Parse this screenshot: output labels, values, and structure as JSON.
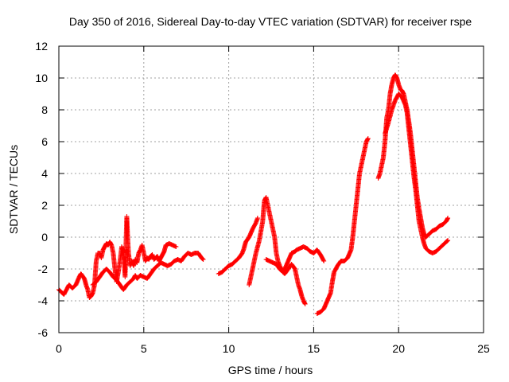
{
  "chart_data": {
    "type": "scatter",
    "title": "Day 350 of 2016, Sidereal Day-to-day VTEC variation (SDTVAR) for receiver rspe",
    "xlabel": "GPS time / hours",
    "ylabel": "SDTVAR / TECUs",
    "xlim": [
      0,
      25
    ],
    "ylim": [
      -6,
      12
    ],
    "xticks": [
      0,
      5,
      10,
      15,
      20,
      25
    ],
    "yticks": [
      -6,
      -4,
      -2,
      0,
      2,
      4,
      6,
      8,
      10,
      12
    ],
    "grid": true,
    "marker": "+",
    "series": [
      {
        "name": "SDTVAR",
        "color": "#ff0000",
        "segments": [
          [
            [
              0.0,
              -3.3
            ],
            [
              0.2,
              -3.5
            ],
            [
              0.3,
              -3.6
            ],
            [
              0.5,
              -3.2
            ],
            [
              0.6,
              -3.0
            ],
            [
              0.8,
              -3.2
            ],
            [
              1.0,
              -3.0
            ],
            [
              1.2,
              -2.5
            ],
            [
              1.3,
              -2.3
            ],
            [
              1.5,
              -2.6
            ],
            [
              1.6,
              -3.0
            ],
            [
              1.7,
              -3.3
            ],
            [
              1.8,
              -3.8
            ],
            [
              1.9,
              -3.7
            ],
            [
              2.0,
              -3.5
            ],
            [
              2.1,
              -3.0
            ],
            [
              2.2,
              -1.5
            ],
            [
              2.3,
              -1.0
            ],
            [
              2.4,
              -1.0
            ],
            [
              2.5,
              -1.3
            ],
            [
              2.6,
              -0.8
            ],
            [
              2.7,
              -0.6
            ],
            [
              2.8,
              -0.4
            ],
            [
              2.9,
              -0.5
            ],
            [
              3.0,
              -0.3
            ],
            [
              3.1,
              -0.5
            ],
            [
              3.2,
              -1.0
            ],
            [
              3.3,
              -2.0
            ],
            [
              3.4,
              -2.8
            ],
            [
              3.5,
              -2.2
            ],
            [
              3.6,
              -1.5
            ],
            [
              3.7,
              -0.6
            ],
            [
              3.8,
              -0.9
            ],
            [
              3.85,
              -1.5
            ],
            [
              3.9,
              -2.5
            ],
            [
              3.95,
              -0.5
            ],
            [
              4.0,
              1.3
            ],
            [
              4.05,
              0.0
            ],
            [
              4.1,
              -1.0
            ],
            [
              4.2,
              -1.8
            ],
            [
              4.3,
              -1.5
            ],
            [
              4.4,
              -1.8
            ],
            [
              4.5,
              -1.4
            ],
            [
              4.6,
              -1.6
            ],
            [
              4.7,
              -1.0
            ],
            [
              4.8,
              -0.8
            ],
            [
              4.9,
              -0.5
            ],
            [
              5.0,
              -1.0
            ],
            [
              5.1,
              -1.5
            ],
            [
              5.2,
              -1.3
            ],
            [
              5.3,
              -1.4
            ],
            [
              5.4,
              -1.2
            ],
            [
              5.5,
              -1.1
            ],
            [
              5.6,
              -1.4
            ],
            [
              5.7,
              -1.3
            ],
            [
              5.8,
              -1.2
            ],
            [
              5.9,
              -1.5
            ],
            [
              6.0,
              -1.3
            ],
            [
              6.1,
              -1.1
            ],
            [
              6.2,
              -0.9
            ],
            [
              6.3,
              -0.5
            ],
            [
              6.5,
              -0.4
            ],
            [
              6.7,
              -0.5
            ],
            [
              6.9,
              -0.6
            ]
          ],
          [
            [
              2.0,
              -3.0
            ],
            [
              2.2,
              -2.8
            ],
            [
              2.4,
              -2.5
            ],
            [
              2.6,
              -2.2
            ],
            [
              2.8,
              -2.0
            ],
            [
              3.0,
              -2.2
            ],
            [
              3.2,
              -2.5
            ],
            [
              3.4,
              -2.7
            ],
            [
              3.6,
              -3.0
            ],
            [
              3.8,
              -3.3
            ],
            [
              4.0,
              -3.0
            ],
            [
              4.2,
              -2.8
            ],
            [
              4.4,
              -2.6
            ],
            [
              4.5,
              -2.4
            ],
            [
              4.6,
              -2.6
            ],
            [
              4.8,
              -2.4
            ],
            [
              5.0,
              -2.5
            ],
            [
              5.2,
              -2.6
            ],
            [
              5.4,
              -2.3
            ],
            [
              5.6,
              -2.0
            ],
            [
              5.8,
              -1.8
            ],
            [
              6.0,
              -1.6
            ],
            [
              6.2,
              -1.7
            ],
            [
              6.4,
              -1.8
            ],
            [
              6.6,
              -1.7
            ],
            [
              6.8,
              -1.5
            ],
            [
              7.0,
              -1.4
            ],
            [
              7.2,
              -1.5
            ],
            [
              7.4,
              -1.2
            ],
            [
              7.6,
              -1.0
            ],
            [
              7.8,
              -1.1
            ],
            [
              8.0,
              -1.0
            ],
            [
              8.2,
              -1.0
            ],
            [
              8.4,
              -1.3
            ],
            [
              8.5,
              -1.4
            ]
          ],
          [
            [
              9.4,
              -2.3
            ],
            [
              9.6,
              -2.2
            ],
            [
              9.8,
              -2.0
            ],
            [
              10.0,
              -1.8
            ],
            [
              10.2,
              -1.7
            ],
            [
              10.4,
              -1.5
            ],
            [
              10.6,
              -1.3
            ],
            [
              10.8,
              -1.0
            ],
            [
              10.9,
              -0.7
            ],
            [
              11.0,
              -0.3
            ],
            [
              11.2,
              0.0
            ],
            [
              11.4,
              0.5
            ],
            [
              11.6,
              0.9
            ],
            [
              11.7,
              1.2
            ]
          ],
          [
            [
              11.2,
              -3.0
            ],
            [
              11.4,
              -2.0
            ],
            [
              11.6,
              -1.0
            ],
            [
              11.8,
              -0.2
            ],
            [
              12.0,
              1.0
            ],
            [
              12.1,
              2.3
            ],
            [
              12.2,
              2.5
            ],
            [
              12.3,
              2.0
            ],
            [
              12.5,
              1.0
            ],
            [
              12.6,
              0.5
            ],
            [
              12.7,
              0.0
            ],
            [
              12.8,
              -1.0
            ],
            [
              12.9,
              -1.5
            ],
            [
              13.0,
              -1.8
            ],
            [
              13.2,
              -2.2
            ],
            [
              13.3,
              -2.0
            ],
            [
              13.5,
              -1.5
            ],
            [
              13.7,
              -1.0
            ],
            [
              13.9,
              -0.9
            ],
            [
              14.0,
              -0.8
            ],
            [
              14.2,
              -0.7
            ],
            [
              14.4,
              -0.6
            ],
            [
              14.6,
              -0.7
            ],
            [
              14.8,
              -0.9
            ],
            [
              15.0,
              -1.0
            ],
            [
              15.2,
              -0.8
            ],
            [
              15.4,
              -1.1
            ],
            [
              15.6,
              -1.5
            ]
          ],
          [
            [
              12.2,
              -1.4
            ],
            [
              12.4,
              -1.5
            ],
            [
              12.6,
              -1.6
            ],
            [
              12.8,
              -1.7
            ],
            [
              13.0,
              -2.0
            ],
            [
              13.1,
              -2.1
            ],
            [
              13.3,
              -2.3
            ],
            [
              13.5,
              -2.0
            ],
            [
              13.7,
              -1.7
            ],
            [
              13.9,
              -2.0
            ],
            [
              14.0,
              -2.5
            ],
            [
              14.1,
              -3.0
            ],
            [
              14.2,
              -3.3
            ],
            [
              14.3,
              -3.7
            ],
            [
              14.4,
              -4.0
            ],
            [
              14.5,
              -4.2
            ]
          ],
          [
            [
              15.2,
              -4.8
            ],
            [
              15.4,
              -4.7
            ],
            [
              15.6,
              -4.5
            ],
            [
              15.8,
              -4.0
            ],
            [
              16.0,
              -3.5
            ],
            [
              16.1,
              -2.8
            ],
            [
              16.2,
              -2.2
            ],
            [
              16.4,
              -1.8
            ],
            [
              16.6,
              -1.5
            ],
            [
              16.8,
              -1.5
            ],
            [
              17.0,
              -1.3
            ],
            [
              17.2,
              -0.8
            ],
            [
              17.3,
              0.0
            ],
            [
              17.4,
              1.0
            ],
            [
              17.5,
              2.0
            ],
            [
              17.6,
              3.0
            ],
            [
              17.7,
              4.0
            ],
            [
              17.8,
              4.5
            ],
            [
              17.9,
              5.0
            ],
            [
              18.0,
              5.5
            ],
            [
              18.1,
              6.0
            ],
            [
              18.2,
              6.2
            ]
          ],
          [
            [
              18.8,
              3.7
            ],
            [
              18.9,
              4.0
            ],
            [
              19.0,
              4.5
            ],
            [
              19.1,
              5.0
            ],
            [
              19.2,
              6.0
            ],
            [
              19.3,
              7.5
            ],
            [
              19.4,
              8.0
            ],
            [
              19.5,
              9.0
            ],
            [
              19.6,
              9.6
            ],
            [
              19.7,
              10.0
            ],
            [
              19.8,
              10.2
            ],
            [
              19.9,
              10.0
            ],
            [
              20.0,
              9.6
            ],
            [
              20.1,
              9.3
            ],
            [
              20.2,
              9.2
            ],
            [
              20.3,
              9.0
            ],
            [
              20.4,
              8.5
            ],
            [
              20.5,
              8.0
            ],
            [
              20.6,
              7.3
            ],
            [
              20.7,
              6.5
            ],
            [
              20.8,
              5.5
            ],
            [
              20.9,
              4.5
            ],
            [
              21.0,
              3.5
            ],
            [
              21.1,
              2.5
            ],
            [
              21.2,
              1.8
            ],
            [
              21.3,
              1.2
            ],
            [
              21.4,
              0.6
            ],
            [
              21.5,
              0.2
            ],
            [
              21.6,
              0.0
            ],
            [
              21.8,
              0.2
            ],
            [
              22.0,
              0.4
            ],
            [
              22.2,
              0.5
            ],
            [
              22.4,
              0.7
            ],
            [
              22.6,
              0.8
            ],
            [
              22.8,
              1.0
            ],
            [
              22.9,
              1.2
            ]
          ],
          [
            [
              19.2,
              6.5
            ],
            [
              19.4,
              7.2
            ],
            [
              19.6,
              8.0
            ],
            [
              19.8,
              8.6
            ],
            [
              20.0,
              9.0
            ],
            [
              20.2,
              8.8
            ],
            [
              20.4,
              8.3
            ],
            [
              20.5,
              7.8
            ],
            [
              20.6,
              6.8
            ],
            [
              20.7,
              5.8
            ],
            [
              20.8,
              4.8
            ],
            [
              20.9,
              3.8
            ],
            [
              21.0,
              3.0
            ],
            [
              21.1,
              2.0
            ],
            [
              21.2,
              1.0
            ],
            [
              21.3,
              0.5
            ],
            [
              21.4,
              0.0
            ],
            [
              21.5,
              -0.4
            ],
            [
              21.6,
              -0.7
            ],
            [
              21.8,
              -0.9
            ],
            [
              22.0,
              -1.0
            ],
            [
              22.2,
              -0.9
            ],
            [
              22.4,
              -0.7
            ],
            [
              22.6,
              -0.5
            ],
            [
              22.8,
              -0.3
            ],
            [
              22.9,
              -0.2
            ]
          ]
        ]
      }
    ]
  }
}
